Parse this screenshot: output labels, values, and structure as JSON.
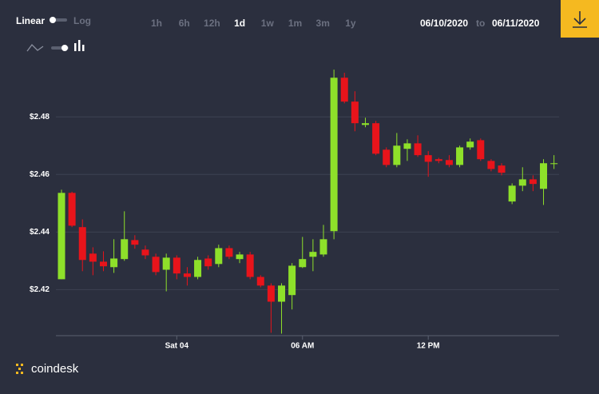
{
  "controls": {
    "scale_linear": "Linear",
    "scale_log": "Log",
    "ranges": [
      "1h",
      "6h",
      "12h",
      "1d",
      "1w",
      "1m",
      "3m",
      "1y"
    ],
    "selected_range": 3,
    "date_from": "06/10/2020",
    "date_separator": "to",
    "date_to": "06/11/2020"
  },
  "brand": "coindesk",
  "chart_data": {
    "type": "candlestick",
    "categories": [
      null,
      null,
      null,
      null,
      null,
      null,
      null,
      null,
      null,
      null,
      null,
      "Sat 04",
      null,
      null,
      null,
      null,
      null,
      null,
      null,
      null,
      null,
      null,
      null,
      "06 AM",
      null,
      null,
      null,
      null,
      null,
      null,
      null,
      null,
      null,
      null,
      null,
      "12 PM",
      null,
      null,
      null,
      null,
      null,
      null,
      null,
      null,
      null,
      null,
      null,
      null
    ],
    "open": [
      2.4236,
      2.4536,
      2.4417,
      2.4325,
      2.4297,
      2.4278,
      2.4306,
      2.4372,
      2.4339,
      2.4314,
      2.4269,
      2.4311,
      2.4256,
      2.4244,
      2.4308,
      2.4289,
      2.4344,
      2.4306,
      2.4322,
      2.4244,
      2.4214,
      2.4158,
      2.4181,
      2.4278,
      2.4314,
      2.4322,
      2.4403,
      2.4936,
      2.4853,
      2.4772,
      2.4778,
      2.4686,
      2.4633,
      2.4689,
      2.4708,
      2.4667,
      2.4653,
      2.465,
      2.4633,
      2.4694,
      2.4719,
      2.4647,
      2.4631,
      2.4506,
      2.4561,
      2.4583,
      2.455,
      2.4636
    ],
    "high": [
      2.4547,
      2.454,
      2.4444,
      2.4347,
      2.4333,
      2.4375,
      2.4472,
      2.4389,
      2.4353,
      2.4325,
      2.4325,
      2.4319,
      2.4278,
      2.4314,
      2.4319,
      2.4356,
      2.4353,
      2.4331,
      2.4331,
      2.425,
      2.4222,
      2.4222,
      2.4292,
      2.4383,
      2.4375,
      2.4425,
      2.4964,
      2.4953,
      2.4889,
      2.4797,
      2.4786,
      2.4694,
      2.4744,
      2.4722,
      2.4736,
      2.4681,
      2.4658,
      2.4667,
      2.47,
      2.4725,
      2.4725,
      2.4653,
      2.4639,
      2.4569,
      2.4625,
      2.4597,
      2.4653,
      2.4667
    ],
    "low": [
      2.4236,
      2.4417,
      2.4264,
      2.425,
      2.4264,
      2.4258,
      2.43,
      2.4342,
      2.4306,
      2.425,
      2.4194,
      2.4236,
      2.4214,
      2.4236,
      2.4269,
      2.4278,
      2.4306,
      2.4292,
      2.4236,
      2.4208,
      2.405,
      2.4047,
      2.4131,
      2.4275,
      2.4264,
      2.4314,
      2.4375,
      2.4847,
      2.475,
      2.4764,
      2.4667,
      2.4625,
      2.4625,
      2.4647,
      2.4661,
      2.4592,
      2.4639,
      2.4625,
      2.4625,
      2.4686,
      2.4647,
      2.4611,
      2.4597,
      2.4497,
      2.4542,
      2.4542,
      2.4494,
      2.4619
    ],
    "close": [
      2.4536,
      2.4422,
      2.4303,
      2.4297,
      2.4281,
      2.4308,
      2.4375,
      2.4356,
      2.4319,
      2.4261,
      2.4311,
      2.4256,
      2.4244,
      2.4303,
      2.4281,
      2.4344,
      2.4314,
      2.4322,
      2.4244,
      2.4214,
      2.4158,
      2.4214,
      2.4283,
      2.4306,
      2.4331,
      2.4375,
      2.4936,
      2.4853,
      2.4778,
      2.4778,
      2.4672,
      2.4633,
      2.47,
      2.4708,
      2.4667,
      2.4644,
      2.4647,
      2.4633,
      2.4694,
      2.4714,
      2.4653,
      2.4619,
      2.4606,
      2.4561,
      2.4583,
      2.4567,
      2.4639,
      2.4639
    ],
    "up_color": "#8ee02a",
    "down_color": "#e8141b",
    "ylim": [
      2.404,
      2.497
    ],
    "yticks": [
      {
        "value": 2.42,
        "label": "$2.42"
      },
      {
        "value": 2.44,
        "label": "$2.44"
      },
      {
        "value": 2.46,
        "label": "$2.46"
      },
      {
        "value": 2.48,
        "label": "$2.48"
      }
    ],
    "grid": true
  }
}
